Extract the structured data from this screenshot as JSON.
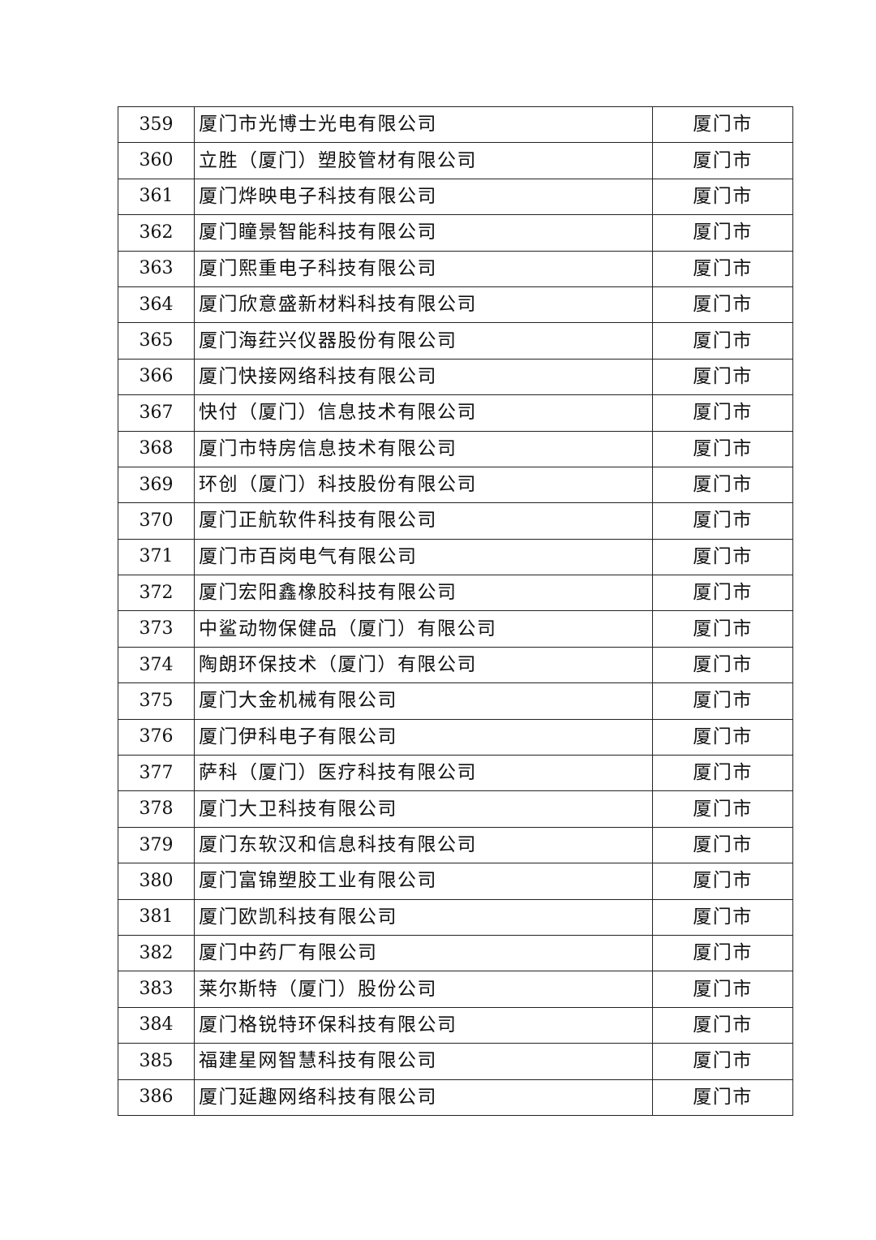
{
  "rows": [
    {
      "no": "359",
      "name": "厦门市光博士光电有限公司",
      "city": "厦门市"
    },
    {
      "no": "360",
      "name": "立胜（厦门）塑胶管材有限公司",
      "city": "厦门市"
    },
    {
      "no": "361",
      "name": "厦门烨映电子科技有限公司",
      "city": "厦门市"
    },
    {
      "no": "362",
      "name": "厦门瞳景智能科技有限公司",
      "city": "厦门市"
    },
    {
      "no": "363",
      "name": "厦门熙重电子科技有限公司",
      "city": "厦门市"
    },
    {
      "no": "364",
      "name": "厦门欣意盛新材料科技有限公司",
      "city": "厦门市"
    },
    {
      "no": "365",
      "name": "厦门海荭兴仪器股份有限公司",
      "city": "厦门市"
    },
    {
      "no": "366",
      "name": "厦门快接网络科技有限公司",
      "city": "厦门市"
    },
    {
      "no": "367",
      "name": "快付（厦门）信息技术有限公司",
      "city": "厦门市"
    },
    {
      "no": "368",
      "name": "厦门市特房信息技术有限公司",
      "city": "厦门市"
    },
    {
      "no": "369",
      "name": "环创（厦门）科技股份有限公司",
      "city": "厦门市"
    },
    {
      "no": "370",
      "name": "厦门正航软件科技有限公司",
      "city": "厦门市"
    },
    {
      "no": "371",
      "name": "厦门市百岗电气有限公司",
      "city": "厦门市"
    },
    {
      "no": "372",
      "name": "厦门宏阳鑫橡胶科技有限公司",
      "city": "厦门市"
    },
    {
      "no": "373",
      "name": "中鲨动物保健品（厦门）有限公司",
      "city": "厦门市"
    },
    {
      "no": "374",
      "name": "陶朗环保技术（厦门）有限公司",
      "city": "厦门市"
    },
    {
      "no": "375",
      "name": "厦门大金机械有限公司",
      "city": "厦门市"
    },
    {
      "no": "376",
      "name": "厦门伊科电子有限公司",
      "city": "厦门市"
    },
    {
      "no": "377",
      "name": "萨科（厦门）医疗科技有限公司",
      "city": "厦门市"
    },
    {
      "no": "378",
      "name": "厦门大卫科技有限公司",
      "city": "厦门市"
    },
    {
      "no": "379",
      "name": "厦门东软汉和信息科技有限公司",
      "city": "厦门市"
    },
    {
      "no": "380",
      "name": "厦门富锦塑胶工业有限公司",
      "city": "厦门市"
    },
    {
      "no": "381",
      "name": "厦门欧凯科技有限公司",
      "city": "厦门市"
    },
    {
      "no": "382",
      "name": "厦门中药厂有限公司",
      "city": "厦门市"
    },
    {
      "no": "383",
      "name": "莱尔斯特（厦门）股份公司",
      "city": "厦门市"
    },
    {
      "no": "384",
      "name": "厦门格锐特环保科技有限公司",
      "city": "厦门市"
    },
    {
      "no": "385",
      "name": "福建星网智慧科技有限公司",
      "city": "厦门市"
    },
    {
      "no": "386",
      "name": "厦门延趣网络科技有限公司",
      "city": "厦门市"
    }
  ]
}
